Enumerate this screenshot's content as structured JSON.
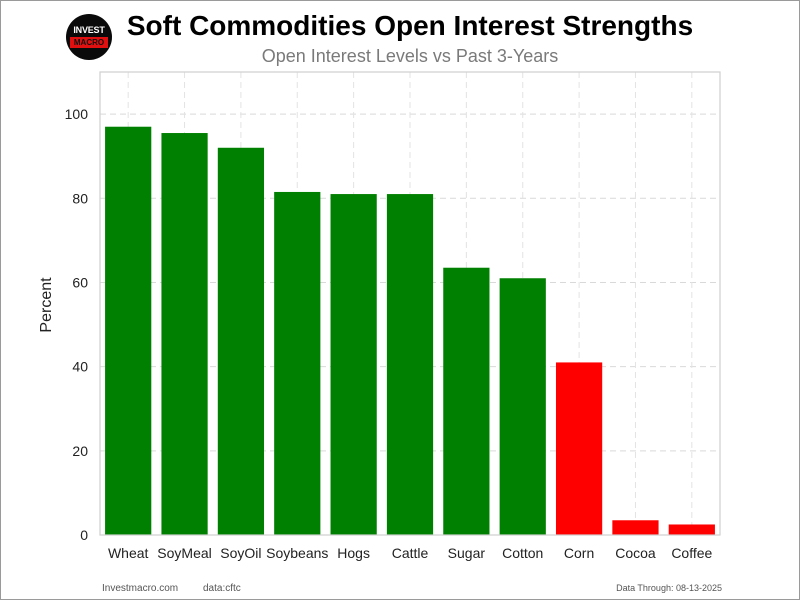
{
  "logo": {
    "line1": "INVEST",
    "line2": "MACRO"
  },
  "footer": {
    "site": "Investmacro.com",
    "source": "data:cftc",
    "date_text": "Data Through: 08-13-2025"
  },
  "chart_data": {
    "type": "bar",
    "title": "Soft Commodities Open Interest Strengths",
    "subtitle": "Open Interest Levels vs Past 3-Years",
    "xlabel": "",
    "ylabel": "Percent",
    "ylim": [
      0,
      110
    ],
    "yticks": [
      0,
      20,
      40,
      60,
      80,
      100
    ],
    "grid": true,
    "categories": [
      "Wheat",
      "SoyMeal",
      "SoyOil",
      "Soybeans",
      "Hogs",
      "Cattle",
      "Sugar",
      "Cotton",
      "Corn",
      "Cocoa",
      "Coffee"
    ],
    "values": [
      97,
      95.5,
      92,
      81.5,
      81,
      81,
      63.5,
      61,
      41,
      3.5,
      2.5
    ],
    "bar_colors": [
      "#008000",
      "#008000",
      "#008000",
      "#008000",
      "#008000",
      "#008000",
      "#008000",
      "#008000",
      "#ff0000",
      "#ff0000",
      "#ff0000"
    ],
    "colors": {
      "above": "#008000",
      "below": "#ff0000"
    }
  }
}
